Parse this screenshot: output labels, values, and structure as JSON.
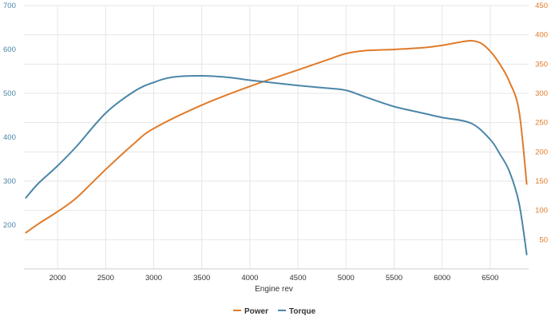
{
  "chart_data": {
    "type": "line",
    "xlabel": "Engine rev",
    "x_ticks": [
      2000,
      2500,
      3000,
      3500,
      4000,
      4500,
      5000,
      5500,
      6000,
      6500
    ],
    "xlim": [
      1650,
      6900
    ],
    "y_left": {
      "ticks": [
        200,
        300,
        400,
        500,
        600,
        700
      ],
      "lim": [
        100,
        700
      ],
      "color": "#4a86a8"
    },
    "y_right": {
      "ticks": [
        50,
        100,
        150,
        200,
        250,
        300,
        350,
        400,
        450
      ],
      "lim": [
        0,
        450
      ],
      "color": "#e07b2a"
    },
    "grid": true,
    "legend_position": "bottom-center",
    "series": [
      {
        "name": "Power",
        "axis": "right",
        "color": "#e07b2a",
        "x": [
          1670,
          1800,
          2000,
          2200,
          2500,
          2800,
          3000,
          3500,
          4000,
          4500,
          4800,
          5000,
          5200,
          5500,
          5800,
          6000,
          6200,
          6300,
          6400,
          6500,
          6600,
          6700,
          6800,
          6880
        ],
        "y": [
          62,
          77,
          98,
          122,
          170,
          215,
          240,
          280,
          312,
          340,
          357,
          368,
          373,
          375,
          378,
          382,
          388,
          390,
          386,
          372,
          350,
          320,
          270,
          145
        ]
      },
      {
        "name": "Torque",
        "axis": "left",
        "color": "#4a86a8",
        "x": [
          1670,
          1800,
          2000,
          2200,
          2500,
          2800,
          3000,
          3200,
          3500,
          3800,
          4000,
          4500,
          4800,
          5000,
          5200,
          5500,
          5800,
          6000,
          6300,
          6500,
          6600,
          6700,
          6800,
          6880
        ],
        "y": [
          262,
          295,
          335,
          380,
          455,
          505,
          525,
          537,
          540,
          536,
          530,
          518,
          512,
          507,
          492,
          470,
          455,
          445,
          432,
          395,
          362,
          322,
          250,
          133
        ]
      }
    ]
  }
}
